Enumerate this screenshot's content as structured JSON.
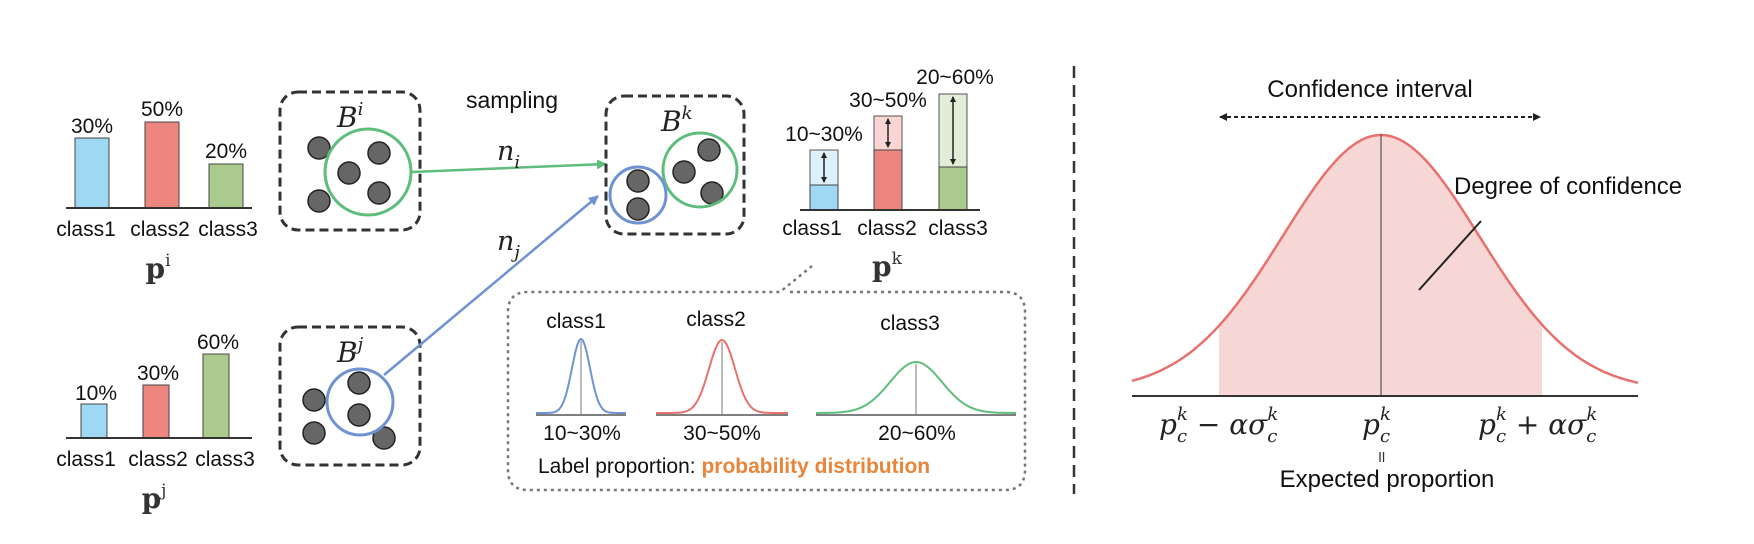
{
  "colors": {
    "class1": "#9fd8f2",
    "class2": "#ee8680",
    "class3": "#abcb8e",
    "green_line": "#5fbd7c",
    "blue_line": "#6f93d2",
    "red_curve": "#e8716d",
    "orange_text": "#e8853b",
    "ball": "#666666",
    "dash": "#333333"
  },
  "left_charts": {
    "pi": {
      "label_bold": "p",
      "label_sup": "i",
      "values": [
        "30%",
        "50%",
        "20%"
      ],
      "classes": [
        "class1",
        "class2",
        "class3"
      ]
    },
    "pj": {
      "label_bold": "p",
      "label_sup": "j",
      "values": [
        "10%",
        "30%",
        "60%"
      ],
      "classes": [
        "class1",
        "class2",
        "class3"
      ]
    }
  },
  "bags": {
    "bi": {
      "base": "B",
      "sup": "i"
    },
    "bj": {
      "base": "B",
      "sup": "j"
    },
    "bk": {
      "base": "B",
      "sup": "k"
    }
  },
  "sampling": {
    "label": "sampling",
    "ni_base": "n",
    "ni_sub": "i",
    "nj_base": "n",
    "nj_sub": "j"
  },
  "pk_chart": {
    "label_bold": "p",
    "label_sup": "k",
    "ranges": [
      "10~30%",
      "30~50%",
      "20~60%"
    ],
    "classes": [
      "class1",
      "class2",
      "class3"
    ]
  },
  "distribution_box": {
    "class_titles": [
      "class1",
      "class2",
      "class3"
    ],
    "ranges": [
      "10~30%",
      "30~50%",
      "20~60%"
    ],
    "caption_prefix": "Label proportion: ",
    "caption_highlight": "probability distribution"
  },
  "right_panel": {
    "confidence_interval": "Confidence interval",
    "degree_of_confidence": "Degree of confidence",
    "expected_proportion": "Expected proportion",
    "equals_sign": "॥",
    "left_tick": {
      "p": "p",
      "sub": "c",
      "sup": "k",
      "op": " − ",
      "alpha": "α",
      "sigma": "σ"
    },
    "mid_tick": {
      "p": "p",
      "sub": "c",
      "sup": "k"
    },
    "right_tick": {
      "p": "p",
      "sub": "c",
      "sup": "k",
      "op": " + ",
      "alpha": "α",
      "sigma": "σ"
    }
  }
}
